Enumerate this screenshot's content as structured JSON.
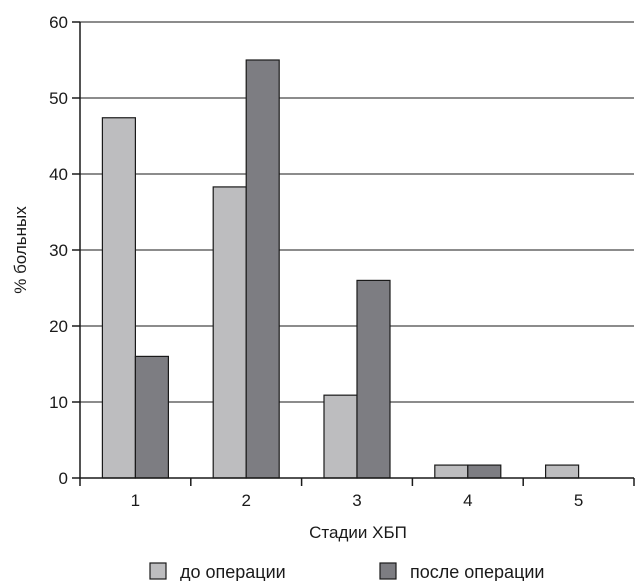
{
  "chart_data": {
    "type": "bar",
    "title": "",
    "xlabel": "Стадии ХБП",
    "ylabel": "% больных",
    "categories": [
      "1",
      "2",
      "3",
      "4",
      "5"
    ],
    "series": [
      {
        "name": "до операции",
        "values": [
          47.4,
          38.3,
          10.9,
          1.7,
          1.7
        ],
        "color": "#bdbdbf"
      },
      {
        "name": "после операции",
        "values": [
          16.0,
          55.0,
          26.0,
          1.7,
          0
        ],
        "color": "#7d7d82"
      }
    ],
    "ylim": [
      0,
      60
    ],
    "yticks": [
      0,
      10,
      20,
      30,
      40,
      50,
      60
    ],
    "grid": true,
    "legend_position": "bottom"
  }
}
